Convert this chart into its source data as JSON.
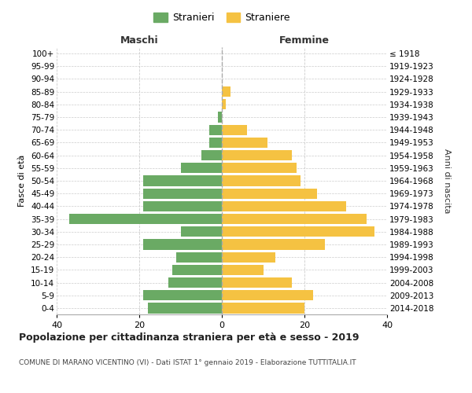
{
  "age_groups": [
    "0-4",
    "5-9",
    "10-14",
    "15-19",
    "20-24",
    "25-29",
    "30-34",
    "35-39",
    "40-44",
    "45-49",
    "50-54",
    "55-59",
    "60-64",
    "65-69",
    "70-74",
    "75-79",
    "80-84",
    "85-89",
    "90-94",
    "95-99",
    "100+"
  ],
  "birth_years": [
    "2014-2018",
    "2009-2013",
    "2004-2008",
    "1999-2003",
    "1994-1998",
    "1989-1993",
    "1984-1988",
    "1979-1983",
    "1974-1978",
    "1969-1973",
    "1964-1968",
    "1959-1963",
    "1954-1958",
    "1949-1953",
    "1944-1948",
    "1939-1943",
    "1934-1938",
    "1929-1933",
    "1924-1928",
    "1919-1923",
    "≤ 1918"
  ],
  "maschi": [
    18,
    19,
    13,
    12,
    11,
    19,
    10,
    37,
    19,
    19,
    19,
    10,
    5,
    3,
    3,
    1,
    0,
    0,
    0,
    0,
    0
  ],
  "femmine": [
    20,
    22,
    17,
    10,
    13,
    25,
    37,
    35,
    30,
    23,
    19,
    18,
    17,
    11,
    6,
    0,
    1,
    2,
    0,
    0,
    0
  ],
  "maschi_color": "#6aaa64",
  "femmine_color": "#f5c242",
  "title": "Popolazione per cittadinanza straniera per età e sesso - 2019",
  "subtitle": "COMUNE DI MARANO VICENTINO (VI) - Dati ISTAT 1° gennaio 2019 - Elaborazione TUTTITALIA.IT",
  "ylabel_left": "Fasce di età",
  "ylabel_right": "Anni di nascita",
  "header_maschi": "Maschi",
  "header_femmine": "Femmine",
  "legend_maschi": "Stranieri",
  "legend_femmine": "Straniere",
  "xlim": 40,
  "background_color": "#ffffff",
  "grid_color": "#cccccc"
}
